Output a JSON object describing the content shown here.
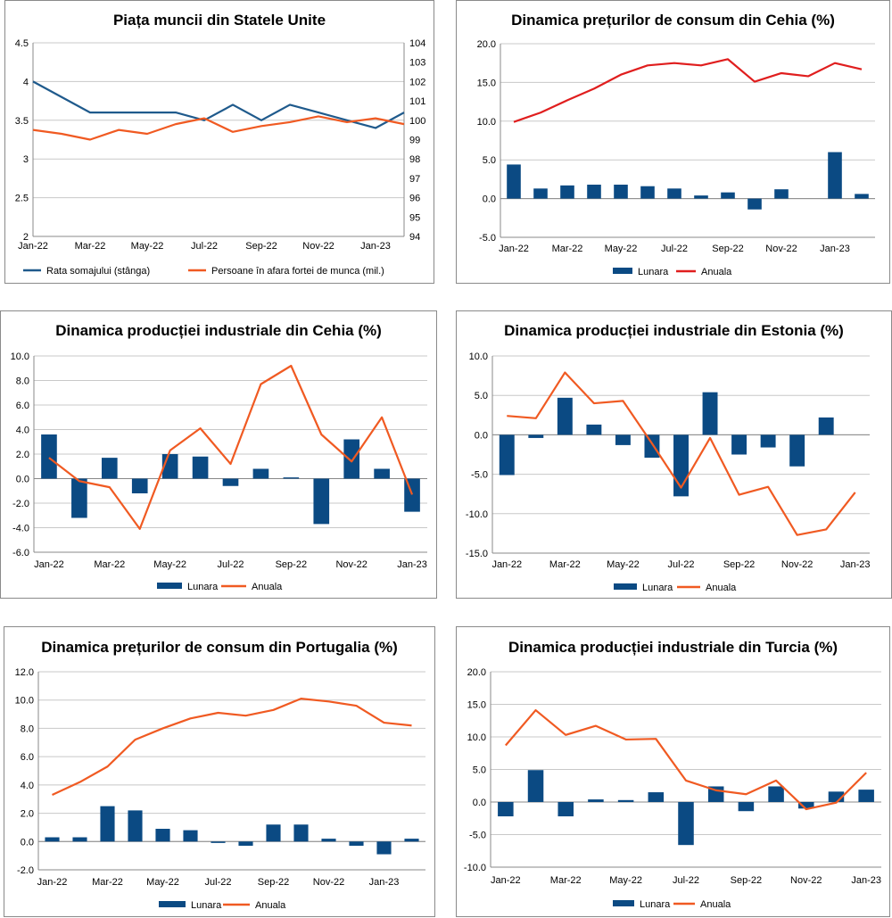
{
  "colors": {
    "bar": "#0b4a83",
    "line_red": "#e01e1e",
    "line_orange": "#f05a22",
    "line_blue": "#1f5a8c",
    "grid": "#c8c8c8",
    "axis": "#888888"
  },
  "chart_data": [
    {
      "id": "us-labor",
      "type": "line",
      "title": "Piața muncii din Statele Unite",
      "x": [
        "Jan-22",
        "Feb-22",
        "Mar-22",
        "Apr-22",
        "May-22",
        "Jun-22",
        "Jul-22",
        "Aug-22",
        "Sep-22",
        "Oct-22",
        "Nov-22",
        "Dec-22",
        "Jan-23",
        "Feb-23"
      ],
      "xticks": [
        "Jan-22",
        "Mar-22",
        "May-22",
        "Jul-22",
        "Sep-22",
        "Nov-22",
        "Jan-23"
      ],
      "ylim": [
        2,
        4.5
      ],
      "yticks": [
        "2",
        "2.5",
        "3",
        "3.5",
        "4",
        "4.5"
      ],
      "y2lim": [
        94,
        104
      ],
      "y2ticks": [
        "94",
        "95",
        "96",
        "97",
        "98",
        "99",
        "100",
        "101",
        "102",
        "103",
        "104"
      ],
      "series": [
        {
          "name": "Rata somajului (stânga)",
          "axis": "left",
          "color": "#1f5a8c",
          "values": [
            4.0,
            3.8,
            3.6,
            3.6,
            3.6,
            3.6,
            3.5,
            3.7,
            3.5,
            3.7,
            3.6,
            3.5,
            3.4,
            3.6
          ]
        },
        {
          "name": "Persoane în afara fortei de munca (mil.)",
          "axis": "right",
          "color": "#f05a22",
          "values": [
            99.5,
            99.3,
            99.0,
            99.5,
            99.3,
            99.8,
            100.1,
            99.4,
            99.7,
            99.9,
            100.2,
            99.9,
            100.1,
            99.8
          ]
        }
      ]
    },
    {
      "id": "cz-cpi",
      "type": "bar+line",
      "title": "Dinamica prețurilor de consum din Cehia (%)",
      "x": [
        "Jan-22",
        "Feb-22",
        "Mar-22",
        "Apr-22",
        "May-22",
        "Jun-22",
        "Jul-22",
        "Aug-22",
        "Sep-22",
        "Oct-22",
        "Nov-22",
        "Dec-22",
        "Jan-23",
        "Feb-23"
      ],
      "xticks": [
        "Jan-22",
        "Mar-22",
        "May-22",
        "Jul-22",
        "Sep-22",
        "Nov-22",
        "Jan-23"
      ],
      "ylim": [
        -5,
        20
      ],
      "yticks": [
        "-5.0",
        "0.0",
        "5.0",
        "10.0",
        "15.0",
        "20.0"
      ],
      "series": [
        {
          "name": "Lunara",
          "kind": "bar",
          "color": "#0b4a83",
          "values": [
            4.4,
            1.3,
            1.7,
            1.8,
            1.8,
            1.6,
            1.3,
            0.4,
            0.8,
            -1.4,
            1.2,
            null,
            6.0,
            0.6
          ]
        },
        {
          "name": "Anuala",
          "kind": "line",
          "color": "#e01e1e",
          "values": [
            9.9,
            11.1,
            12.7,
            14.2,
            16.0,
            17.2,
            17.5,
            17.2,
            18.0,
            15.1,
            16.2,
            15.8,
            17.5,
            16.7
          ]
        }
      ]
    },
    {
      "id": "cz-ind",
      "type": "bar+line",
      "title": "Dinamica producției industriale din Cehia (%)",
      "x": [
        "Jan-22",
        "Feb-22",
        "Mar-22",
        "Apr-22",
        "May-22",
        "Jun-22",
        "Jul-22",
        "Aug-22",
        "Sep-22",
        "Oct-22",
        "Nov-22",
        "Dec-22",
        "Jan-23"
      ],
      "xticks": [
        "Jan-22",
        "Mar-22",
        "May-22",
        "Jul-22",
        "Sep-22",
        "Nov-22",
        "Jan-23"
      ],
      "ylim": [
        -6,
        10
      ],
      "yticks": [
        "-6.0",
        "-4.0",
        "-2.0",
        "0.0",
        "2.0",
        "4.0",
        "6.0",
        "8.0",
        "10.0"
      ],
      "series": [
        {
          "name": "Lunara",
          "kind": "bar",
          "color": "#0b4a83",
          "values": [
            3.6,
            -3.2,
            1.7,
            -1.2,
            2.0,
            1.8,
            -0.6,
            0.8,
            0.1,
            -3.7,
            3.2,
            0.8,
            -2.7
          ]
        },
        {
          "name": "Anuala",
          "kind": "line",
          "color": "#f05a22",
          "values": [
            1.7,
            -0.2,
            -0.7,
            -4.1,
            2.3,
            4.1,
            1.2,
            7.7,
            9.2,
            3.6,
            1.4,
            5.0,
            -1.3
          ]
        }
      ]
    },
    {
      "id": "ee-ind",
      "type": "bar+line",
      "title": "Dinamica producției industriale din Estonia (%)",
      "x": [
        "Jan-22",
        "Feb-22",
        "Mar-22",
        "Apr-22",
        "May-22",
        "Jun-22",
        "Jul-22",
        "Aug-22",
        "Sep-22",
        "Oct-22",
        "Nov-22",
        "Dec-22",
        "Jan-23"
      ],
      "xticks": [
        "Jan-22",
        "Mar-22",
        "May-22",
        "Jul-22",
        "Sep-22",
        "Nov-22",
        "Jan-23"
      ],
      "ylim": [
        -15,
        10
      ],
      "yticks": [
        "-15.0",
        "-10.0",
        "-5.0",
        "0.0",
        "5.0",
        "10.0"
      ],
      "series": [
        {
          "name": "Lunara",
          "kind": "bar",
          "color": "#0b4a83",
          "values": [
            -5.1,
            -0.4,
            4.7,
            1.3,
            -1.3,
            -2.9,
            -7.8,
            5.4,
            -2.5,
            -1.6,
            -4.0,
            2.2,
            null
          ]
        },
        {
          "name": "Anuala",
          "kind": "line",
          "color": "#f05a22",
          "values": [
            2.4,
            2.1,
            7.9,
            4.0,
            4.3,
            -1.1,
            -6.7,
            -0.4,
            -7.6,
            -6.6,
            -12.7,
            -12.0,
            -7.3
          ]
        }
      ]
    },
    {
      "id": "pt-cpi",
      "type": "bar+line",
      "title": "Dinamica prețurilor de consum din Portugalia (%)",
      "x": [
        "Jan-22",
        "Feb-22",
        "Mar-22",
        "Apr-22",
        "May-22",
        "Jun-22",
        "Jul-22",
        "Aug-22",
        "Sep-22",
        "Oct-22",
        "Nov-22",
        "Dec-22",
        "Jan-23",
        "Feb-23"
      ],
      "xticks": [
        "Jan-22",
        "Mar-22",
        "May-22",
        "Jul-22",
        "Sep-22",
        "Nov-22",
        "Jan-23"
      ],
      "ylim": [
        -2,
        12
      ],
      "yticks": [
        "-2.0",
        "0.0",
        "2.0",
        "4.0",
        "6.0",
        "8.0",
        "10.0",
        "12.0"
      ],
      "series": [
        {
          "name": "Lunara",
          "kind": "bar",
          "color": "#0b4a83",
          "values": [
            0.3,
            0.3,
            2.5,
            2.2,
            0.9,
            0.8,
            -0.1,
            -0.3,
            1.2,
            1.2,
            0.2,
            -0.3,
            -0.9,
            0.2
          ]
        },
        {
          "name": "Anuala",
          "kind": "line",
          "color": "#f05a22",
          "values": [
            3.3,
            4.2,
            5.3,
            7.2,
            8.0,
            8.7,
            9.1,
            8.9,
            9.3,
            10.1,
            9.9,
            9.6,
            8.4,
            8.2
          ]
        }
      ]
    },
    {
      "id": "tr-ind",
      "type": "bar+line",
      "title": "Dinamica producției industriale din Turcia (%)",
      "x": [
        "Jan-22",
        "Feb-22",
        "Mar-22",
        "Apr-22",
        "May-22",
        "Jun-22",
        "Jul-22",
        "Aug-22",
        "Sep-22",
        "Oct-22",
        "Nov-22",
        "Dec-22",
        "Jan-23"
      ],
      "xticks": [
        "Jan-22",
        "Mar-22",
        "May-22",
        "Jul-22",
        "Sep-22",
        "Nov-22",
        "Jan-23"
      ],
      "ylim": [
        -10,
        20
      ],
      "yticks": [
        "-10.0",
        "-5.0",
        "0.0",
        "5.0",
        "10.0",
        "15.0",
        "20.0"
      ],
      "series": [
        {
          "name": "Lunara",
          "kind": "bar",
          "color": "#0b4a83",
          "values": [
            -2.2,
            4.9,
            -2.2,
            0.4,
            0.3,
            1.5,
            -6.6,
            2.4,
            -1.4,
            2.4,
            -1.0,
            1.6,
            1.9
          ]
        },
        {
          "name": "Anuala",
          "kind": "line",
          "color": "#f05a22",
          "values": [
            8.7,
            14.1,
            10.3,
            11.7,
            9.6,
            9.7,
            3.3,
            1.8,
            1.2,
            3.3,
            -1.1,
            -0.1,
            4.5
          ]
        }
      ]
    }
  ]
}
